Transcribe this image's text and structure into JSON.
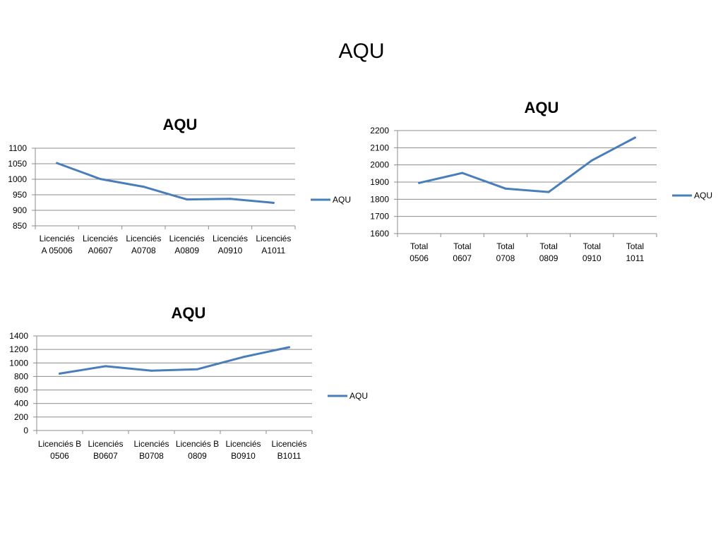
{
  "slide": {
    "title": "AQU"
  },
  "chart_data": [
    {
      "type": "line",
      "title": "AQU",
      "categories": [
        [
          "Licenciés",
          "A 05006"
        ],
        [
          "Licenciés",
          "A0607"
        ],
        [
          "Licenciés",
          "A0708"
        ],
        [
          "Licenciés",
          "A0809"
        ],
        [
          "Licenciés",
          "A0910"
        ],
        [
          "Licenciés",
          "A1011"
        ]
      ],
      "series": [
        {
          "name": "AQU",
          "color": "#4a7ebb",
          "values": [
            1052,
            1001,
            976,
            935,
            937,
            924
          ]
        }
      ],
      "ylim": [
        850,
        1100
      ],
      "yticks": [
        850,
        900,
        950,
        1000,
        1050,
        1100
      ],
      "grid": true,
      "legend": "right"
    },
    {
      "type": "line",
      "title": "AQU",
      "categories": [
        [
          "Total",
          "0506"
        ],
        [
          "Total",
          "0607"
        ],
        [
          "Total",
          "0708"
        ],
        [
          "Total",
          "0809"
        ],
        [
          "Total",
          "0910"
        ],
        [
          "Total",
          "1011"
        ]
      ],
      "series": [
        {
          "name": "AQU",
          "color": "#4a7ebb",
          "values": [
            1895,
            1953,
            1862,
            1842,
            2026,
            2159
          ]
        }
      ],
      "ylim": [
        1600,
        2200
      ],
      "yticks": [
        1600,
        1700,
        1800,
        1900,
        2000,
        2100,
        2200
      ],
      "grid": true,
      "legend": "right"
    },
    {
      "type": "line",
      "title": "AQU",
      "categories": [
        [
          "Licenciés B",
          "0506"
        ],
        [
          "Licenciés",
          "B0607"
        ],
        [
          "Licenciés",
          "B0708"
        ],
        [
          "Licenciés B",
          "0809"
        ],
        [
          "Licenciés",
          "B0910"
        ],
        [
          "Licenciés",
          "B1011"
        ]
      ],
      "series": [
        {
          "name": "AQU",
          "color": "#4a7ebb",
          "values": [
            842,
            952,
            886,
            907,
            1088,
            1233
          ]
        }
      ],
      "ylim": [
        0,
        1400
      ],
      "yticks": [
        0,
        200,
        400,
        600,
        800,
        1000,
        1200,
        1400
      ],
      "grid": true,
      "legend": "right"
    }
  ]
}
